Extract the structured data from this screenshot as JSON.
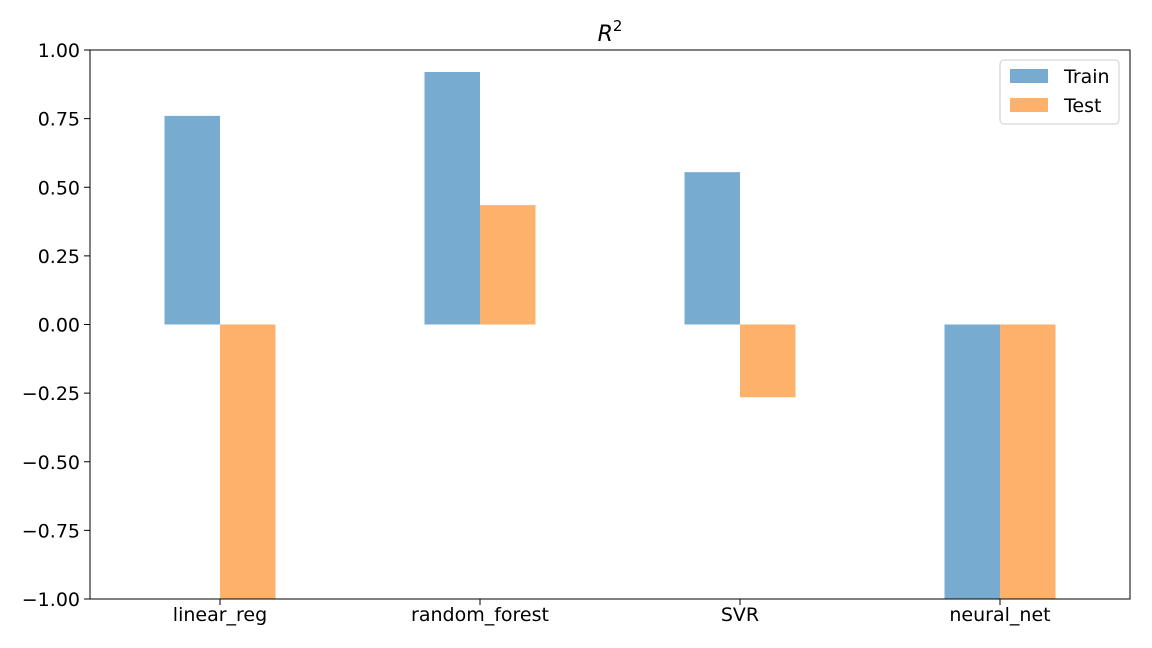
{
  "chart_data": {
    "type": "bar",
    "title": "R",
    "title_superscript": "2",
    "categories": [
      "linear_reg",
      "random_forest",
      "SVR",
      "neural_net"
    ],
    "series": [
      {
        "name": "Train",
        "values": [
          0.76,
          0.92,
          0.555,
          -1.0
        ],
        "color": "#77acd0"
      },
      {
        "name": "Test",
        "values": [
          -1.0,
          0.435,
          -0.265,
          -1.0
        ],
        "color": "#feb16b"
      }
    ],
    "xlabel": "",
    "ylabel": "",
    "ylim": [
      -1.0,
      1.0
    ],
    "yticks": [
      1.0,
      0.75,
      0.5,
      0.25,
      0.0,
      -0.25,
      -0.5,
      -0.75,
      -1.0
    ],
    "ytick_labels": [
      "1.00",
      "0.75",
      "0.50",
      "0.25",
      "0.00",
      "−0.25",
      "−0.50",
      "−0.75",
      "−1.00"
    ],
    "grid": false,
    "legend_position": "top-right"
  }
}
